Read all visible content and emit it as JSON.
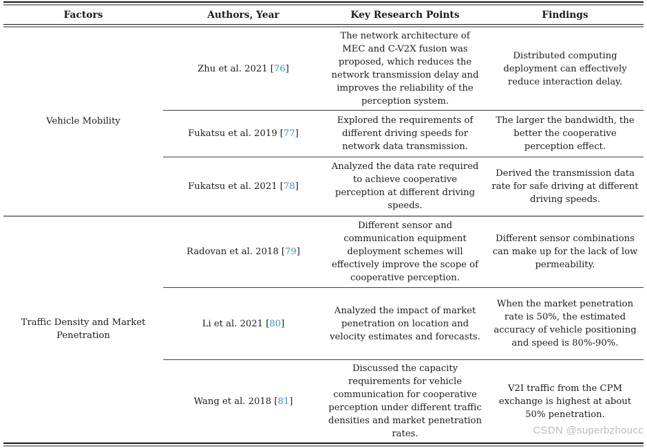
{
  "page": {
    "watermark": "CSDN @superbzhoucc"
  },
  "colors": {
    "text": "#1b1b1b",
    "citation_link": "#3494cd",
    "rule_dark": "#151515",
    "rule_gray": "#8f8f8f",
    "watermark": "#bcbcbc",
    "background": "#ffffff"
  },
  "table": {
    "headers": [
      "Factors",
      "Authors, Year",
      "Key Research Points",
      "Findings"
    ],
    "citation": {
      "open": "[",
      "close": "]"
    },
    "sections": [
      {
        "factor": "Vehicle Mobility",
        "rows": [
          {
            "author": "Zhu et al. 2021",
            "ref": "76",
            "key_research_points": "The network architecture of MEC and C-V2X fusion was proposed, which reduces the network transmission delay and improves the reliability of the perception system.",
            "findings": "Distributed computing deployment can effectively reduce interaction delay."
          },
          {
            "author": "Fukatsu et al. 2019",
            "ref": "77",
            "key_research_points": "Explored the requirements of different driving speeds for network data transmission.",
            "findings": "The larger the bandwidth, the better the cooperative perception effect."
          },
          {
            "author": "Fukatsu et al. 2021",
            "ref": "78",
            "key_research_points": "Analyzed the data rate required to achieve cooperative perception at different driving speeds.",
            "findings": "Derived the transmission data rate for safe driving at different driving speeds."
          }
        ]
      },
      {
        "factor": "Traffic Density and Market Penetration",
        "rows": [
          {
            "author": "Radovan et al. 2018",
            "ref": "79",
            "key_research_points": "Different sensor and communication equipment deployment schemes will effectively improve the scope of cooperative perception.",
            "findings": "Different sensor combinations can make up for the lack of low permeability."
          },
          {
            "author": "Li et al. 2021",
            "ref": "80",
            "key_research_points": "Analyzed the impact of market penetration on location and velocity estimates and forecasts.",
            "findings": "When the market penetration rate is 50%, the estimated accuracy of vehicle positioning and speed is 80%-90%."
          },
          {
            "author": "Wang et al. 2018",
            "ref": "81",
            "key_research_points": "Discussed the capacity requirements for vehicle communication for cooperative perception under different traffic densities and market penetration rates.",
            "findings": "V2I traffic from the CPM exchange is highest at about 50% penetration."
          }
        ]
      }
    ]
  }
}
